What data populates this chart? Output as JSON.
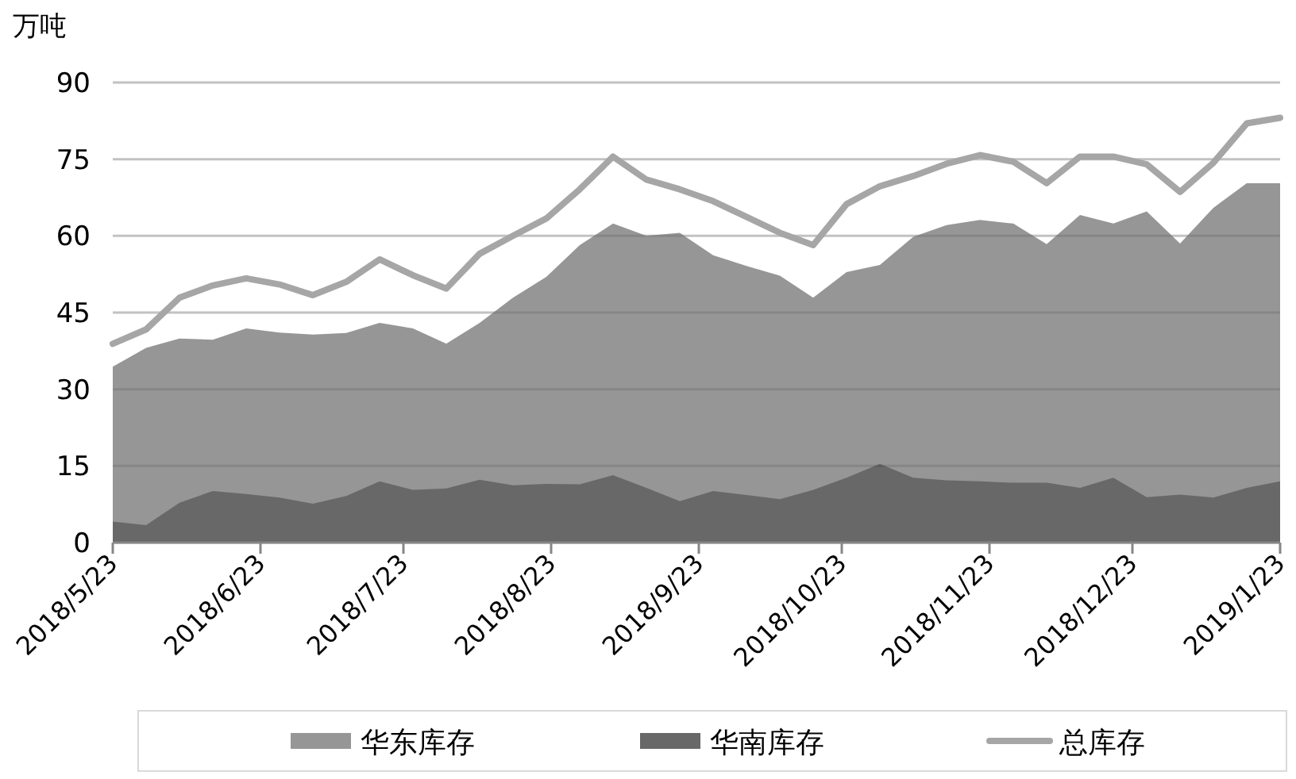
{
  "chart_data": {
    "type": "area",
    "ylabel": "万吨",
    "x": [
      "2018-05-23",
      "2018-05-30",
      "2018-06-06",
      "2018-06-13",
      "2018-06-20",
      "2018-06-27",
      "2018-07-04",
      "2018-07-11",
      "2018-07-18",
      "2018-07-25",
      "2018-08-01",
      "2018-08-08",
      "2018-08-15",
      "2018-08-22",
      "2018-08-29",
      "2018-09-05",
      "2018-09-12",
      "2018-09-19",
      "2018-09-26",
      "2018-10-03",
      "2018-10-10",
      "2018-10-17",
      "2018-10-24",
      "2018-10-31",
      "2018-11-07",
      "2018-11-14",
      "2018-11-21",
      "2018-11-28",
      "2018-12-05",
      "2018-12-12",
      "2018-12-19",
      "2018-12-26",
      "2019-01-02",
      "2019-01-09",
      "2019-01-16",
      "2019-01-23"
    ],
    "series": [
      {
        "name": "华东库存",
        "type": "area",
        "color": "#969696",
        "values": [
          34.4,
          38.1,
          39.9,
          39.7,
          41.9,
          41.1,
          40.7,
          41,
          43,
          41.9,
          38.9,
          43,
          47.9,
          52,
          58.2,
          62.4,
          60,
          60.6,
          56.2,
          54.1,
          52.2,
          47.9,
          52.9,
          54.3,
          59.8,
          62.1,
          63.1,
          62.4,
          58.4,
          64.1,
          62.4,
          64.8,
          58.5,
          65.5,
          70.3,
          70.3
        ]
      },
      {
        "name": "华南库存",
        "type": "area",
        "color": "#686868",
        "values": [
          4.1,
          3.4,
          7.8,
          10.1,
          9.5,
          8.8,
          7.6,
          9.1,
          12,
          10.3,
          10.6,
          12.3,
          11.2,
          11.5,
          11.4,
          13.2,
          10.7,
          8.1,
          10.1,
          9.3,
          8.5,
          10.3,
          12.7,
          15.4,
          12.7,
          12.2,
          12,
          11.7,
          11.7,
          10.7,
          12.7,
          8.9,
          9.4,
          8.8,
          10.7,
          12
        ]
      },
      {
        "name": "总库存",
        "type": "line",
        "color": "#a6a6a6",
        "values": [
          38.9,
          41.7,
          47.9,
          50.3,
          51.7,
          50.5,
          48.4,
          51,
          55.4,
          52.3,
          49.7,
          56.5,
          60,
          63.4,
          69.1,
          75.5,
          71,
          69.1,
          66.8,
          63.7,
          60.6,
          58.2,
          66.2,
          69.7,
          71.7,
          74.1,
          75.8,
          74.5,
          70.3,
          75.5,
          75.5,
          74,
          68.6,
          74.3,
          82,
          83.1
        ]
      }
    ],
    "xlim": [
      "2018-05-23",
      "2019-01-23"
    ],
    "xticks": [
      {
        "value": "2018-05-23",
        "label": "2018/5/23"
      },
      {
        "value": "2018-06-23",
        "label": "2018/6/23"
      },
      {
        "value": "2018-07-23",
        "label": "2018/7/23"
      },
      {
        "value": "2018-08-23",
        "label": "2018/8/23"
      },
      {
        "value": "2018-09-23",
        "label": "2018/9/23"
      },
      {
        "value": "2018-10-23",
        "label": "2018/10/23"
      },
      {
        "value": "2018-11-23",
        "label": "2018/11/23"
      },
      {
        "value": "2018-12-23",
        "label": "2018/12/23"
      },
      {
        "value": "2019-01-23",
        "label": "2019/1/23"
      }
    ],
    "ylim": [
      0,
      90
    ],
    "yticks": [
      0,
      15,
      30,
      45,
      60,
      75,
      90
    ],
    "grid": "y",
    "legend": "bottom"
  }
}
